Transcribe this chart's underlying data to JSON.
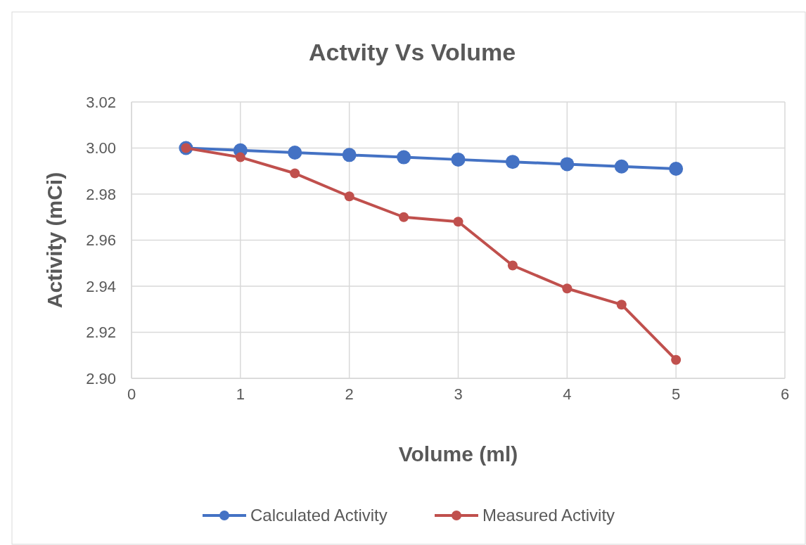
{
  "chart_data": {
    "type": "line",
    "title": "Actvity Vs Volume",
    "xlabel": "Volume (ml)",
    "ylabel": "Activity (mCi)",
    "xlim": [
      0,
      6
    ],
    "xticks": [
      0,
      1,
      2,
      3,
      4,
      5,
      6
    ],
    "ylim": [
      2.9,
      3.02
    ],
    "yticks": [
      {
        "value": 2.9,
        "label": "2.90"
      },
      {
        "value": 2.92,
        "label": "2.92"
      },
      {
        "value": 2.94,
        "label": "2.94"
      },
      {
        "value": 2.96,
        "label": "2.96"
      },
      {
        "value": 2.98,
        "label": "2.98"
      },
      {
        "value": 3.0,
        "label": "3.00"
      },
      {
        "value": 3.02,
        "label": "3.02"
      }
    ],
    "grid": true,
    "legend": "bottom",
    "marker": "circle",
    "line_style": "solid",
    "x": [
      0.5,
      1,
      1.5,
      2,
      2.5,
      3,
      3.5,
      4,
      4.5,
      5
    ],
    "series": [
      {
        "name": "Calculated Activity",
        "color": "#4472c4",
        "values": [
          3.0,
          2.999,
          2.998,
          2.997,
          2.996,
          2.995,
          2.994,
          2.993,
          2.992,
          2.991
        ]
      },
      {
        "name": "Measured Activity",
        "color": "#c0504d",
        "values": [
          3.0,
          2.996,
          2.989,
          2.979,
          2.97,
          2.968,
          2.949,
          2.939,
          2.932,
          2.908
        ]
      }
    ]
  }
}
